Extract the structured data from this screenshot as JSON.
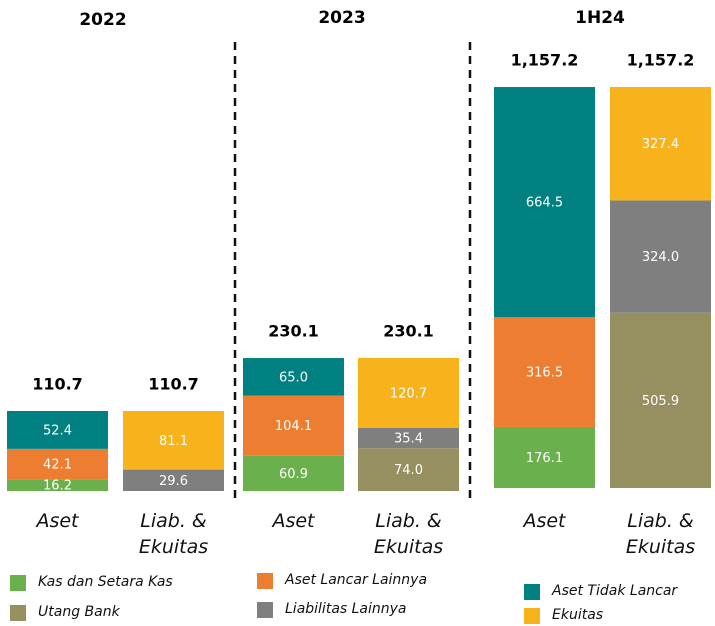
{
  "chart_data": [
    {
      "type": "bar",
      "stacked": true,
      "title": "2022",
      "categories": [
        "Aset",
        "Liab. & Ekuitas"
      ],
      "totals": [
        110.7,
        110.7
      ],
      "series": [
        {
          "name": "Kas dan Setara Kas",
          "color": "#6ab04c",
          "values": [
            16.2,
            null
          ]
        },
        {
          "name": "Aset Lancar Lainnya",
          "color": "#ed7d31",
          "values": [
            42.1,
            null
          ]
        },
        {
          "name": "Aset Tidak Lancar",
          "color": "#008080",
          "values": [
            52.4,
            null
          ]
        },
        {
          "name": "Utang Bank",
          "color": "#968f5f",
          "values": [
            null,
            null
          ]
        },
        {
          "name": "Liabilitas Lainnya",
          "color": "#7f7f7f",
          "values": [
            null,
            29.6
          ]
        },
        {
          "name": "Ekuitas",
          "color": "#f8b31c",
          "values": [
            null,
            81.1
          ]
        }
      ]
    },
    {
      "type": "bar",
      "stacked": true,
      "title": "2023",
      "categories": [
        "Aset",
        "Liab. & Ekuitas"
      ],
      "totals": [
        230.1,
        230.1
      ],
      "series": [
        {
          "name": "Kas dan Setara Kas",
          "color": "#6ab04c",
          "values": [
            60.9,
            null
          ]
        },
        {
          "name": "Aset Lancar Lainnya",
          "color": "#ed7d31",
          "values": [
            104.1,
            null
          ]
        },
        {
          "name": "Aset Tidak Lancar",
          "color": "#008080",
          "values": [
            65.0,
            null
          ],
          "value_labels": [
            "65.0",
            null
          ]
        },
        {
          "name": "Utang Bank",
          "color": "#968f5f",
          "values": [
            null,
            74.0
          ],
          "value_labels": [
            null,
            "74.0"
          ]
        },
        {
          "name": "Liabilitas Lainnya",
          "color": "#7f7f7f",
          "values": [
            null,
            35.4
          ]
        },
        {
          "name": "Ekuitas",
          "color": "#f8b31c",
          "values": [
            null,
            120.7
          ]
        }
      ]
    },
    {
      "type": "bar",
      "stacked": true,
      "title": "1H24",
      "categories": [
        "Aset",
        "Liab. & Ekuitas"
      ],
      "totals": [
        1157.2,
        1157.2
      ],
      "total_labels": [
        "1,157.2",
        "1,157.2"
      ],
      "series": [
        {
          "name": "Kas dan Setara Kas",
          "color": "#6ab04c",
          "values": [
            176.1,
            null
          ]
        },
        {
          "name": "Aset Lancar Lainnya",
          "color": "#ed7d31",
          "values": [
            316.5,
            null
          ]
        },
        {
          "name": "Aset Tidak Lancar",
          "color": "#008080",
          "values": [
            664.5,
            null
          ]
        },
        {
          "name": "Utang Bank",
          "color": "#968f5f",
          "values": [
            null,
            505.9
          ]
        },
        {
          "name": "Liabilitas Lainnya",
          "color": "#7f7f7f",
          "values": [
            null,
            324.0
          ],
          "value_labels": [
            null,
            "324.0"
          ]
        },
        {
          "name": "Ekuitas",
          "color": "#f8b31c",
          "values": [
            null,
            327.4
          ]
        }
      ]
    }
  ]
}
